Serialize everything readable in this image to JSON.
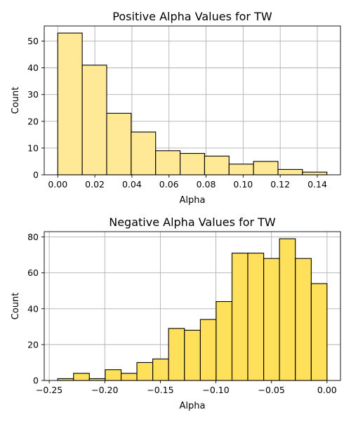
{
  "chart_data": [
    {
      "type": "bar",
      "title": "Positive Alpha Values for TW",
      "xlabel": "Alpha",
      "ylabel": "Count",
      "bar_color": "#ffe896",
      "bin_edges": [
        0.0,
        0.0132,
        0.0264,
        0.0396,
        0.0528,
        0.066,
        0.0792,
        0.0924,
        0.1056,
        0.1188,
        0.132,
        0.1452
      ],
      "values": [
        53,
        41,
        23,
        16,
        9,
        8,
        7,
        4,
        5,
        2,
        1
      ],
      "xlim": [
        -0.0073,
        0.1525
      ],
      "ylim": [
        0,
        55.65
      ],
      "xticks": [
        0.0,
        0.02,
        0.04,
        0.06,
        0.08,
        0.1,
        0.12,
        0.14
      ],
      "xtick_labels": [
        "0.00",
        "0.02",
        "0.04",
        "0.06",
        "0.08",
        "0.10",
        "0.12",
        "0.14"
      ],
      "yticks": [
        0,
        10,
        20,
        30,
        40,
        50
      ],
      "ytick_labels": [
        "0",
        "10",
        "20",
        "30",
        "40",
        "50"
      ],
      "grid": true
    },
    {
      "type": "bar",
      "title": "Negative Alpha Values for TW",
      "xlabel": "Alpha",
      "ylabel": "Count",
      "bar_color": "#ffe05a",
      "bin_edges": [
        -0.2424,
        -0.2281,
        -0.2139,
        -0.1996,
        -0.1853,
        -0.1711,
        -0.1568,
        -0.1426,
        -0.1283,
        -0.114,
        -0.0998,
        -0.0855,
        -0.0713,
        -0.057,
        -0.0428,
        -0.0285,
        -0.0142,
        0.0
      ],
      "values": [
        1,
        4,
        1,
        6,
        4,
        10,
        12,
        29,
        28,
        34,
        44,
        71,
        71,
        68,
        79,
        68,
        54
      ],
      "xlim": [
        -0.2545,
        0.0121
      ],
      "ylim": [
        0,
        82.95
      ],
      "xticks": [
        -0.25,
        -0.2,
        -0.15,
        -0.1,
        -0.05,
        0.0
      ],
      "xtick_labels": [
        "−0.25",
        "−0.20",
        "−0.15",
        "−0.10",
        "−0.05",
        "0.00"
      ],
      "yticks": [
        0,
        20,
        40,
        60,
        80
      ],
      "ytick_labels": [
        "0",
        "20",
        "40",
        "60",
        "80"
      ],
      "grid": true
    }
  ]
}
